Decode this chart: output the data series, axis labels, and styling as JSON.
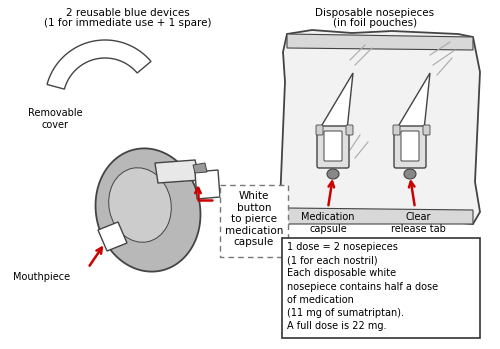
{
  "title_left_line1": "2 reusable blue devices",
  "title_left_line2": "(1 for immediate use + 1 spare)",
  "title_right_line1": "Disposable nosepieces",
  "title_right_line2": "(in foil pouches)",
  "label_removable_cover": "Removable\ncover",
  "label_mouthpiece": "Mouthpiece",
  "label_white_button": "White\nbutton\nto pierce\nmedication\ncapsule",
  "label_medication_capsule": "Medication\ncapsule",
  "label_clear_release_tab": "Clear\nrelease tab",
  "text_box_lines": [
    "1 dose = 2 nosepieces",
    "(1 for each nostril)",
    "Each disposable white",
    "nosepiece contains half a dose",
    "of medication",
    "(11 mg of sumatriptan).",
    "A full dose is 22 mg."
  ],
  "arrow_color": "#cc0000",
  "outline_color": "#444444",
  "fill_gray": "#b8b8b8",
  "fill_light": "#e8e8e8",
  "fill_white": "#ffffff",
  "background": "#ffffff",
  "border_color": "#777777"
}
